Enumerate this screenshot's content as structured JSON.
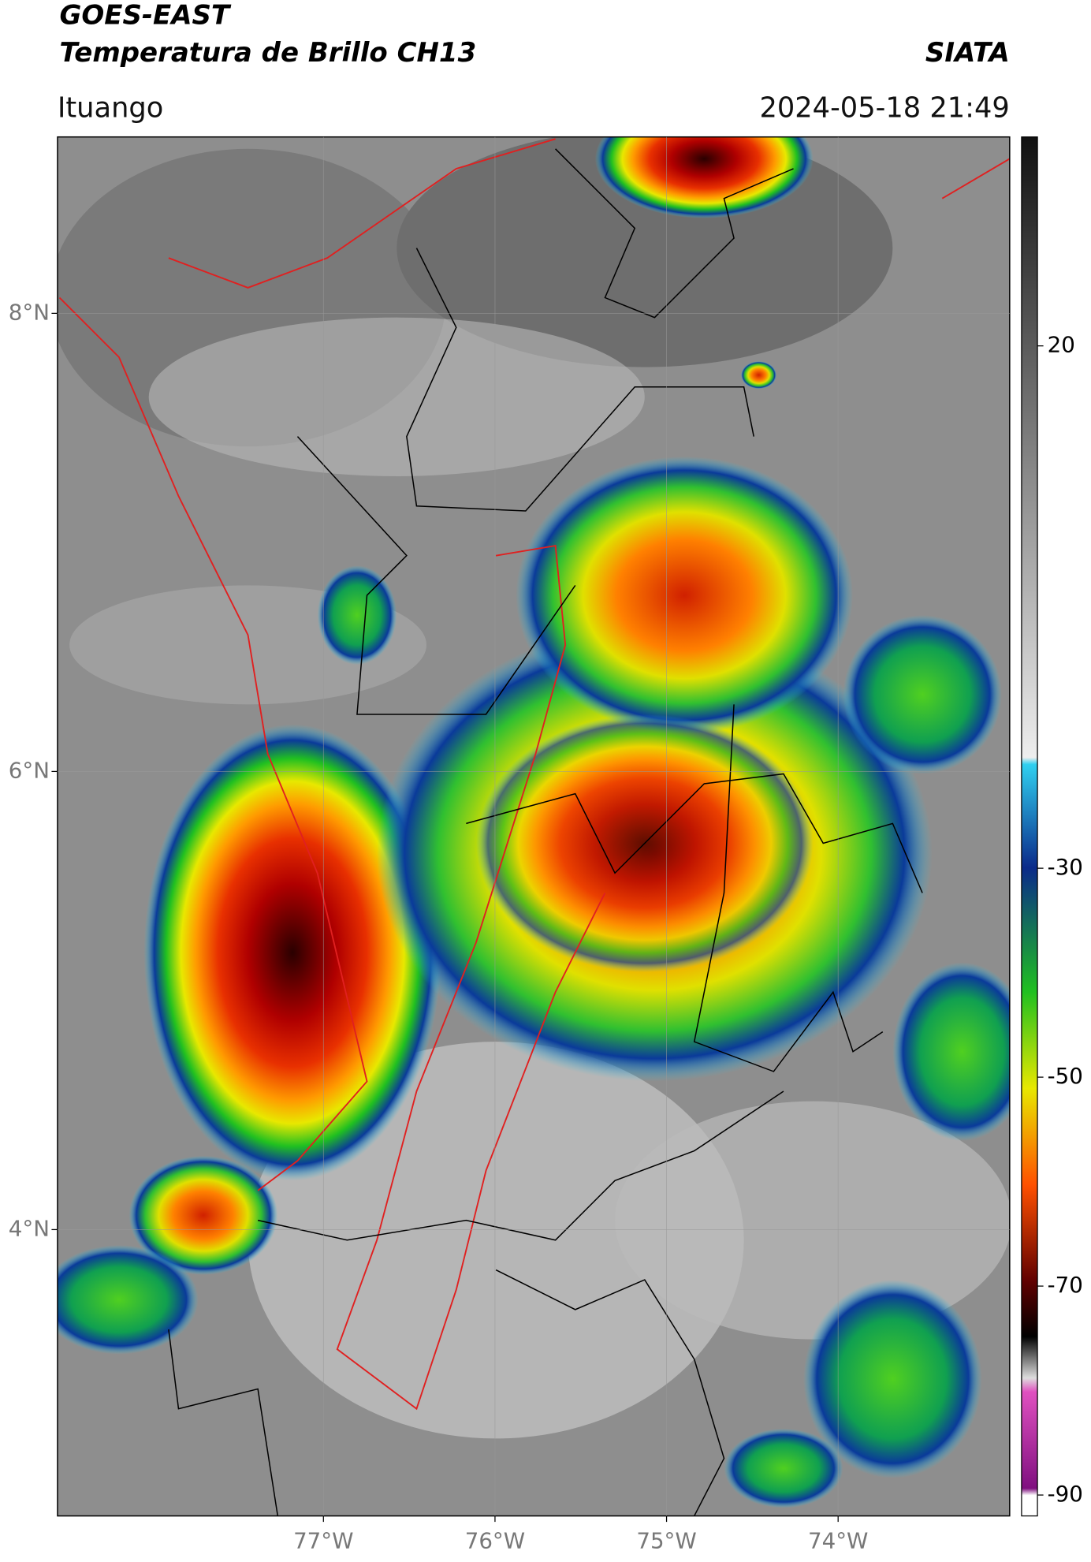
{
  "header": {
    "title": "GOES-EAST",
    "subtitle": "Temperatura de Brillo CH13",
    "source": "SIATA",
    "location": "Ituango",
    "datetime": "2024-05-18 21:49"
  },
  "map": {
    "xlim": [
      -78.55,
      -73.0
    ],
    "ylim": [
      2.75,
      8.77
    ],
    "xticks": [
      {
        "value": -77,
        "label": "77°W"
      },
      {
        "value": -76,
        "label": "76°W"
      },
      {
        "value": -75,
        "label": "75°W"
      },
      {
        "value": -74,
        "label": "74°W"
      }
    ],
    "yticks": [
      {
        "value": 8,
        "label": "8°N"
      },
      {
        "value": 6,
        "label": "6°N"
      },
      {
        "value": 4,
        "label": "4°N"
      }
    ]
  },
  "colorbar": {
    "lim": [
      -92,
      40
    ],
    "ticks": [
      20,
      -30,
      -50,
      -70,
      -90
    ]
  }
}
